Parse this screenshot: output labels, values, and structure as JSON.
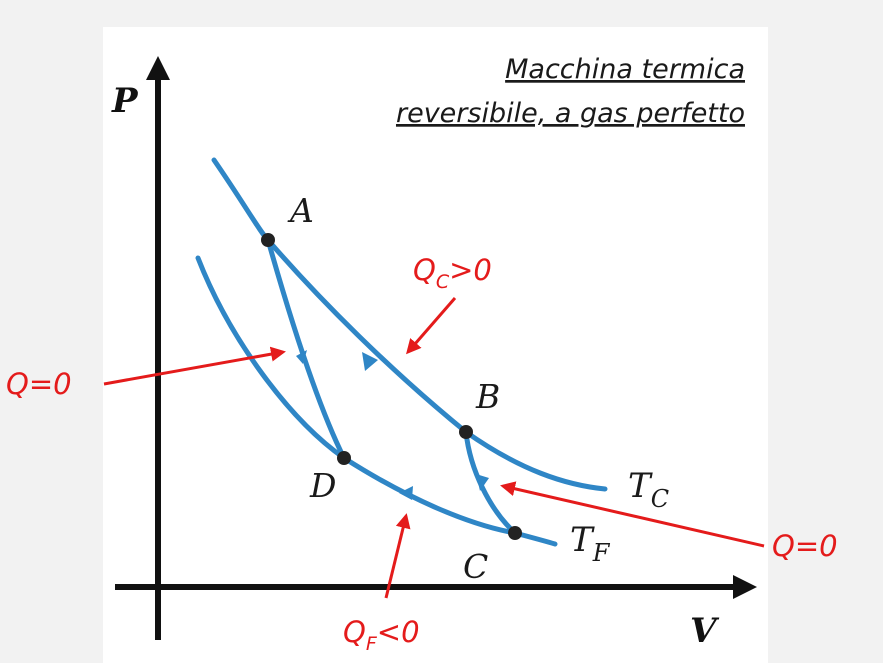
{
  "title": {
    "line1": "Macchina termica",
    "line2": "reversibile, a gas perfetto"
  },
  "axes": {
    "y_label": "P",
    "x_label": "V"
  },
  "points": {
    "a": "A",
    "b": "B",
    "c": "C",
    "d": "D"
  },
  "isotherms": {
    "hot": {
      "main": "T",
      "sub": "C"
    },
    "cold": {
      "main": "T",
      "sub": "F"
    }
  },
  "annotations": {
    "qc": {
      "main": "Q",
      "sub": "C",
      "rest": ">0"
    },
    "qf": {
      "main": "Q",
      "sub": "F",
      "rest": "<0"
    },
    "q_left": "Q=0",
    "q_right": "Q=0"
  },
  "colors": {
    "curve": "#2f86c6",
    "annotation": "#e41b1b",
    "axis": "#111111",
    "point": "#222222"
  }
}
